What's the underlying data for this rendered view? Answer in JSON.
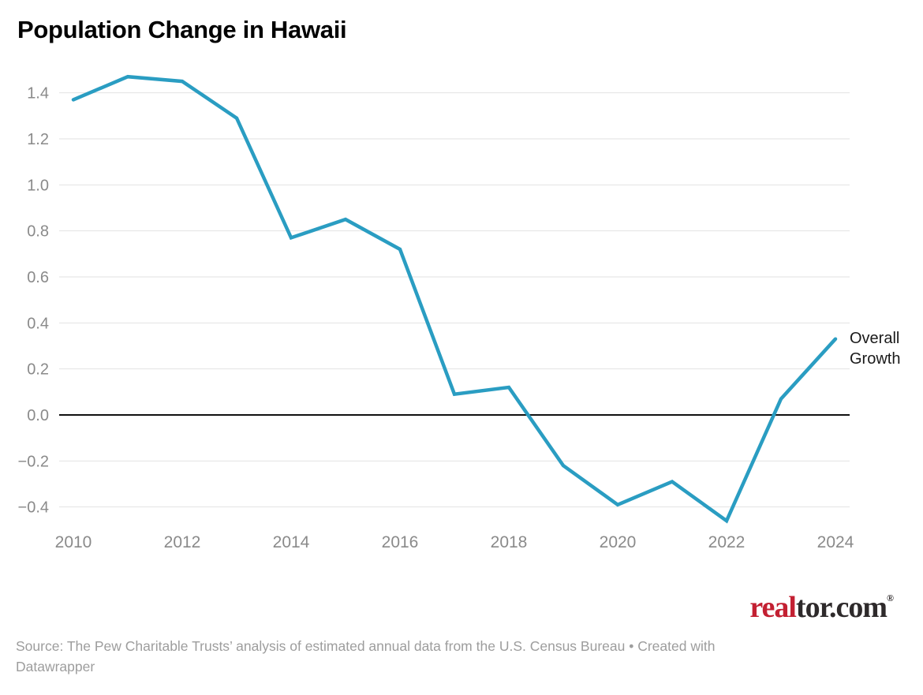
{
  "title": "Population Change in Hawaii",
  "annotation": {
    "text": "Overall Growth"
  },
  "logo": {
    "real": "real",
    "tor_com": "tor.com",
    "registered": "®"
  },
  "footer": {
    "line1": "Source: The Pew Charitable Trusts’ analysis of estimated annual data from the U.S. Census Bureau • Created with",
    "line2": "Datawrapper"
  },
  "chart_data": {
    "type": "line",
    "title": "Population Change in Hawaii",
    "x": [
      2010,
      2011,
      2012,
      2013,
      2014,
      2015,
      2016,
      2017,
      2018,
      2019,
      2020,
      2021,
      2022,
      2023,
      2024
    ],
    "series": [
      {
        "name": "Overall Growth",
        "values": [
          1.37,
          1.47,
          1.45,
          1.29,
          0.77,
          0.85,
          0.72,
          0.09,
          0.12,
          -0.22,
          -0.39,
          -0.29,
          -0.46,
          0.07,
          0.33
        ]
      }
    ],
    "unit": "percent",
    "xticks": [
      2010,
      2012,
      2014,
      2016,
      2018,
      2020,
      2022,
      2024
    ],
    "yticks": [
      1.4,
      1.2,
      1.0,
      0.8,
      0.6,
      0.4,
      0.2,
      0.0,
      -0.2,
      -0.4
    ],
    "ylim": [
      -0.5,
      1.53
    ],
    "grid": "horizontal",
    "zero_line": true,
    "legend_position": "end-of-line-label",
    "colors": {
      "line": "#2a9dc2",
      "grid": "#e2e2e2",
      "zero_line": "#111111",
      "tick_label": "#8a8a8a"
    }
  }
}
